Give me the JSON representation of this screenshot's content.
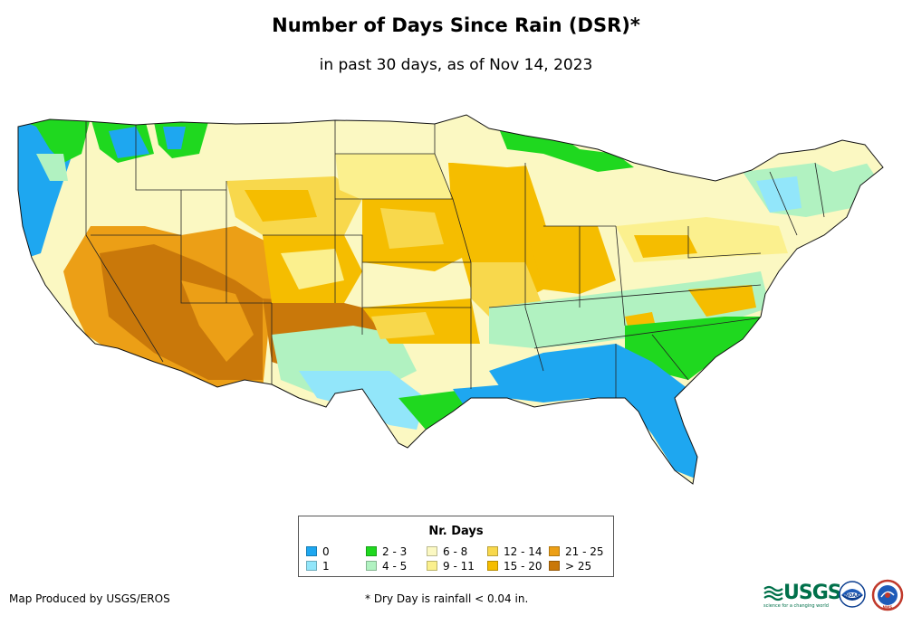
{
  "header": {
    "title": "Number of Days Since Rain (DSR)*",
    "subtitle": "in past 30 days, as of Nov 14, 2023"
  },
  "legend": {
    "title": "Nr. Days",
    "items": [
      {
        "label": "0",
        "color": "#1ea7f0"
      },
      {
        "label": "1",
        "color": "#92e6fa"
      },
      {
        "label": "2 - 3",
        "color": "#1fd81f"
      },
      {
        "label": "4 - 5",
        "color": "#b1f2c1"
      },
      {
        "label": "6 - 8",
        "color": "#fbf8c2"
      },
      {
        "label": "9 - 11",
        "color": "#fbf08e"
      },
      {
        "label": "12 - 14",
        "color": "#f8d84c"
      },
      {
        "label": "15 - 20",
        "color": "#f5bd00"
      },
      {
        "label": "21 - 25",
        "color": "#ec9f16"
      },
      {
        "label": "> 25",
        "color": "#c9780a"
      }
    ]
  },
  "footer": {
    "credit": "Map Produced by USGS/EROS",
    "footnote": "* Dry Day is rainfall < 0.04 in.",
    "usgs_logo": "USGS",
    "usgs_tagline": "science for a changing world",
    "noaa_logo": "NOAA",
    "nws_logo": "NWS"
  }
}
